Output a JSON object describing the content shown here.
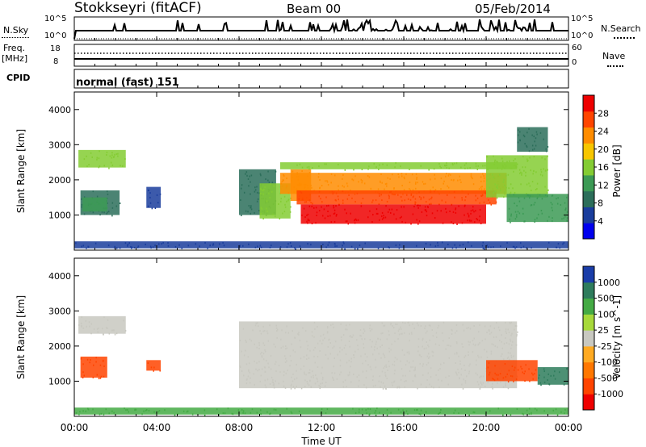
{
  "header": {
    "site": "Stokkseyri (fitACF)",
    "beam": "Beam 00",
    "date": "05/Feb/2014"
  },
  "top_panels": {
    "nsky_label": "N.Sky",
    "nsky_ticks": [
      "10^5",
      "10^0"
    ],
    "nsearch_label": "N.Search",
    "nsearch_ticks": [
      "10^5",
      "10^0"
    ],
    "freq_label": "Freq.",
    "freq_unit": "[MHz]",
    "freq_ticks": [
      "18",
      "8"
    ],
    "nave_label": "Nave",
    "nave_ticks": [
      "60",
      "0"
    ],
    "cpid_label": "CPID",
    "cpid_mode": "normal (fast) 151"
  },
  "colors": {
    "power_scale": [
      "#0000ee",
      "#1a3d9c",
      "#2c6e5a",
      "#3c9a55",
      "#84cc33",
      "#f7c600",
      "#ff8c00",
      "#ff4500",
      "#ee0000"
    ],
    "velocity_scale": [
      "#1a3da8",
      "#2e7c5c",
      "#44aa44",
      "#a7d93a",
      "#c8c8c0",
      "#ffaa22",
      "#ff7700",
      "#ff4400",
      "#ee0000"
    ],
    "ground_scatter": "#c8c8c0"
  },
  "chart_data": [
    {
      "type": "heatmap",
      "panel": "power",
      "x_ticks": [
        "00:00",
        "04:00",
        "08:00",
        "12:00",
        "16:00",
        "20:00",
        "00:00"
      ],
      "xlim_hours": [
        0,
        24
      ],
      "ylabel": "Slant Range [km]",
      "ylim": [
        0,
        4500
      ],
      "y_ticks": [
        1000,
        2000,
        3000,
        4000
      ],
      "colorbar_label": "Power [dB]",
      "colorbar_ticks": [
        "4",
        "8",
        "12",
        "16",
        "20",
        "24",
        "28"
      ],
      "colorbar_range": [
        0,
        30
      ],
      "regions": [
        {
          "t0": 0.2,
          "t1": 2.5,
          "r0": 2350,
          "r1": 2850,
          "v": 16
        },
        {
          "t0": 0.3,
          "t1": 2.2,
          "r0": 1000,
          "r1": 1700,
          "v": 9
        },
        {
          "t0": 0.4,
          "t1": 1.6,
          "r0": 1100,
          "r1": 1500,
          "v": 13
        },
        {
          "t0": 3.5,
          "t1": 4.2,
          "r0": 1200,
          "r1": 1800,
          "v": 6
        },
        {
          "t0": 8.0,
          "t1": 9.8,
          "r0": 1000,
          "r1": 2300,
          "v": 8
        },
        {
          "t0": 9.0,
          "t1": 10.5,
          "r0": 900,
          "r1": 1900,
          "v": 16
        },
        {
          "t0": 10.5,
          "t1": 11.5,
          "r0": 1400,
          "r1": 2300,
          "v": 20
        },
        {
          "t0": 10.0,
          "t1": 21.0,
          "r0": 1600,
          "r1": 2200,
          "v": 20
        },
        {
          "t0": 10.8,
          "t1": 20.5,
          "r0": 1300,
          "r1": 1700,
          "v": 26
        },
        {
          "t0": 11.0,
          "t1": 20.0,
          "r0": 750,
          "r1": 1300,
          "v": 30
        },
        {
          "t0": 10.0,
          "t1": 21.5,
          "r0": 2300,
          "r1": 2500,
          "v": 14
        },
        {
          "t0": 20.0,
          "t1": 23.0,
          "r0": 1500,
          "r1": 2700,
          "v": 14
        },
        {
          "t0": 21.0,
          "t1": 24.0,
          "r0": 800,
          "r1": 1600,
          "v": 10
        },
        {
          "t0": 21.5,
          "t1": 23.0,
          "r0": 2800,
          "r1": 3500,
          "v": 8
        },
        {
          "t0": 0.0,
          "t1": 24.0,
          "r0": 50,
          "r1": 250,
          "v": 6
        }
      ]
    },
    {
      "type": "heatmap",
      "panel": "velocity",
      "x_ticks": [
        "00:00",
        "04:00",
        "08:00",
        "12:00",
        "16:00",
        "20:00",
        "00:00"
      ],
      "xlim_hours": [
        0,
        24
      ],
      "xlabel": "Time UT",
      "ylabel": "Slant Range [km]",
      "ylim": [
        0,
        4500
      ],
      "y_ticks": [
        1000,
        2000,
        3000,
        4000
      ],
      "colorbar_label": "Velocity [m s^-1]",
      "colorbar_ticks": [
        "1000",
        "500",
        "100",
        "25",
        "-25",
        "-100",
        "-500",
        "-1000"
      ],
      "regions": [
        {
          "t0": 0.2,
          "t1": 2.5,
          "r0": 2350,
          "r1": 2850,
          "v": 0
        },
        {
          "t0": 0.3,
          "t1": 1.6,
          "r0": 1100,
          "r1": 1700,
          "v": -500
        },
        {
          "t0": 3.5,
          "t1": 4.2,
          "r0": 1300,
          "r1": 1600,
          "v": -500
        },
        {
          "t0": 8.0,
          "t1": 21.5,
          "r0": 800,
          "r1": 2700,
          "v": 0
        },
        {
          "t0": 20.0,
          "t1": 22.5,
          "r0": 1000,
          "r1": 1600,
          "v": -500
        },
        {
          "t0": 22.5,
          "t1": 24.0,
          "r0": 900,
          "r1": 1400,
          "v": 300
        },
        {
          "t0": 0.0,
          "t1": 24.0,
          "r0": 50,
          "r1": 250,
          "v": 50
        }
      ]
    }
  ]
}
